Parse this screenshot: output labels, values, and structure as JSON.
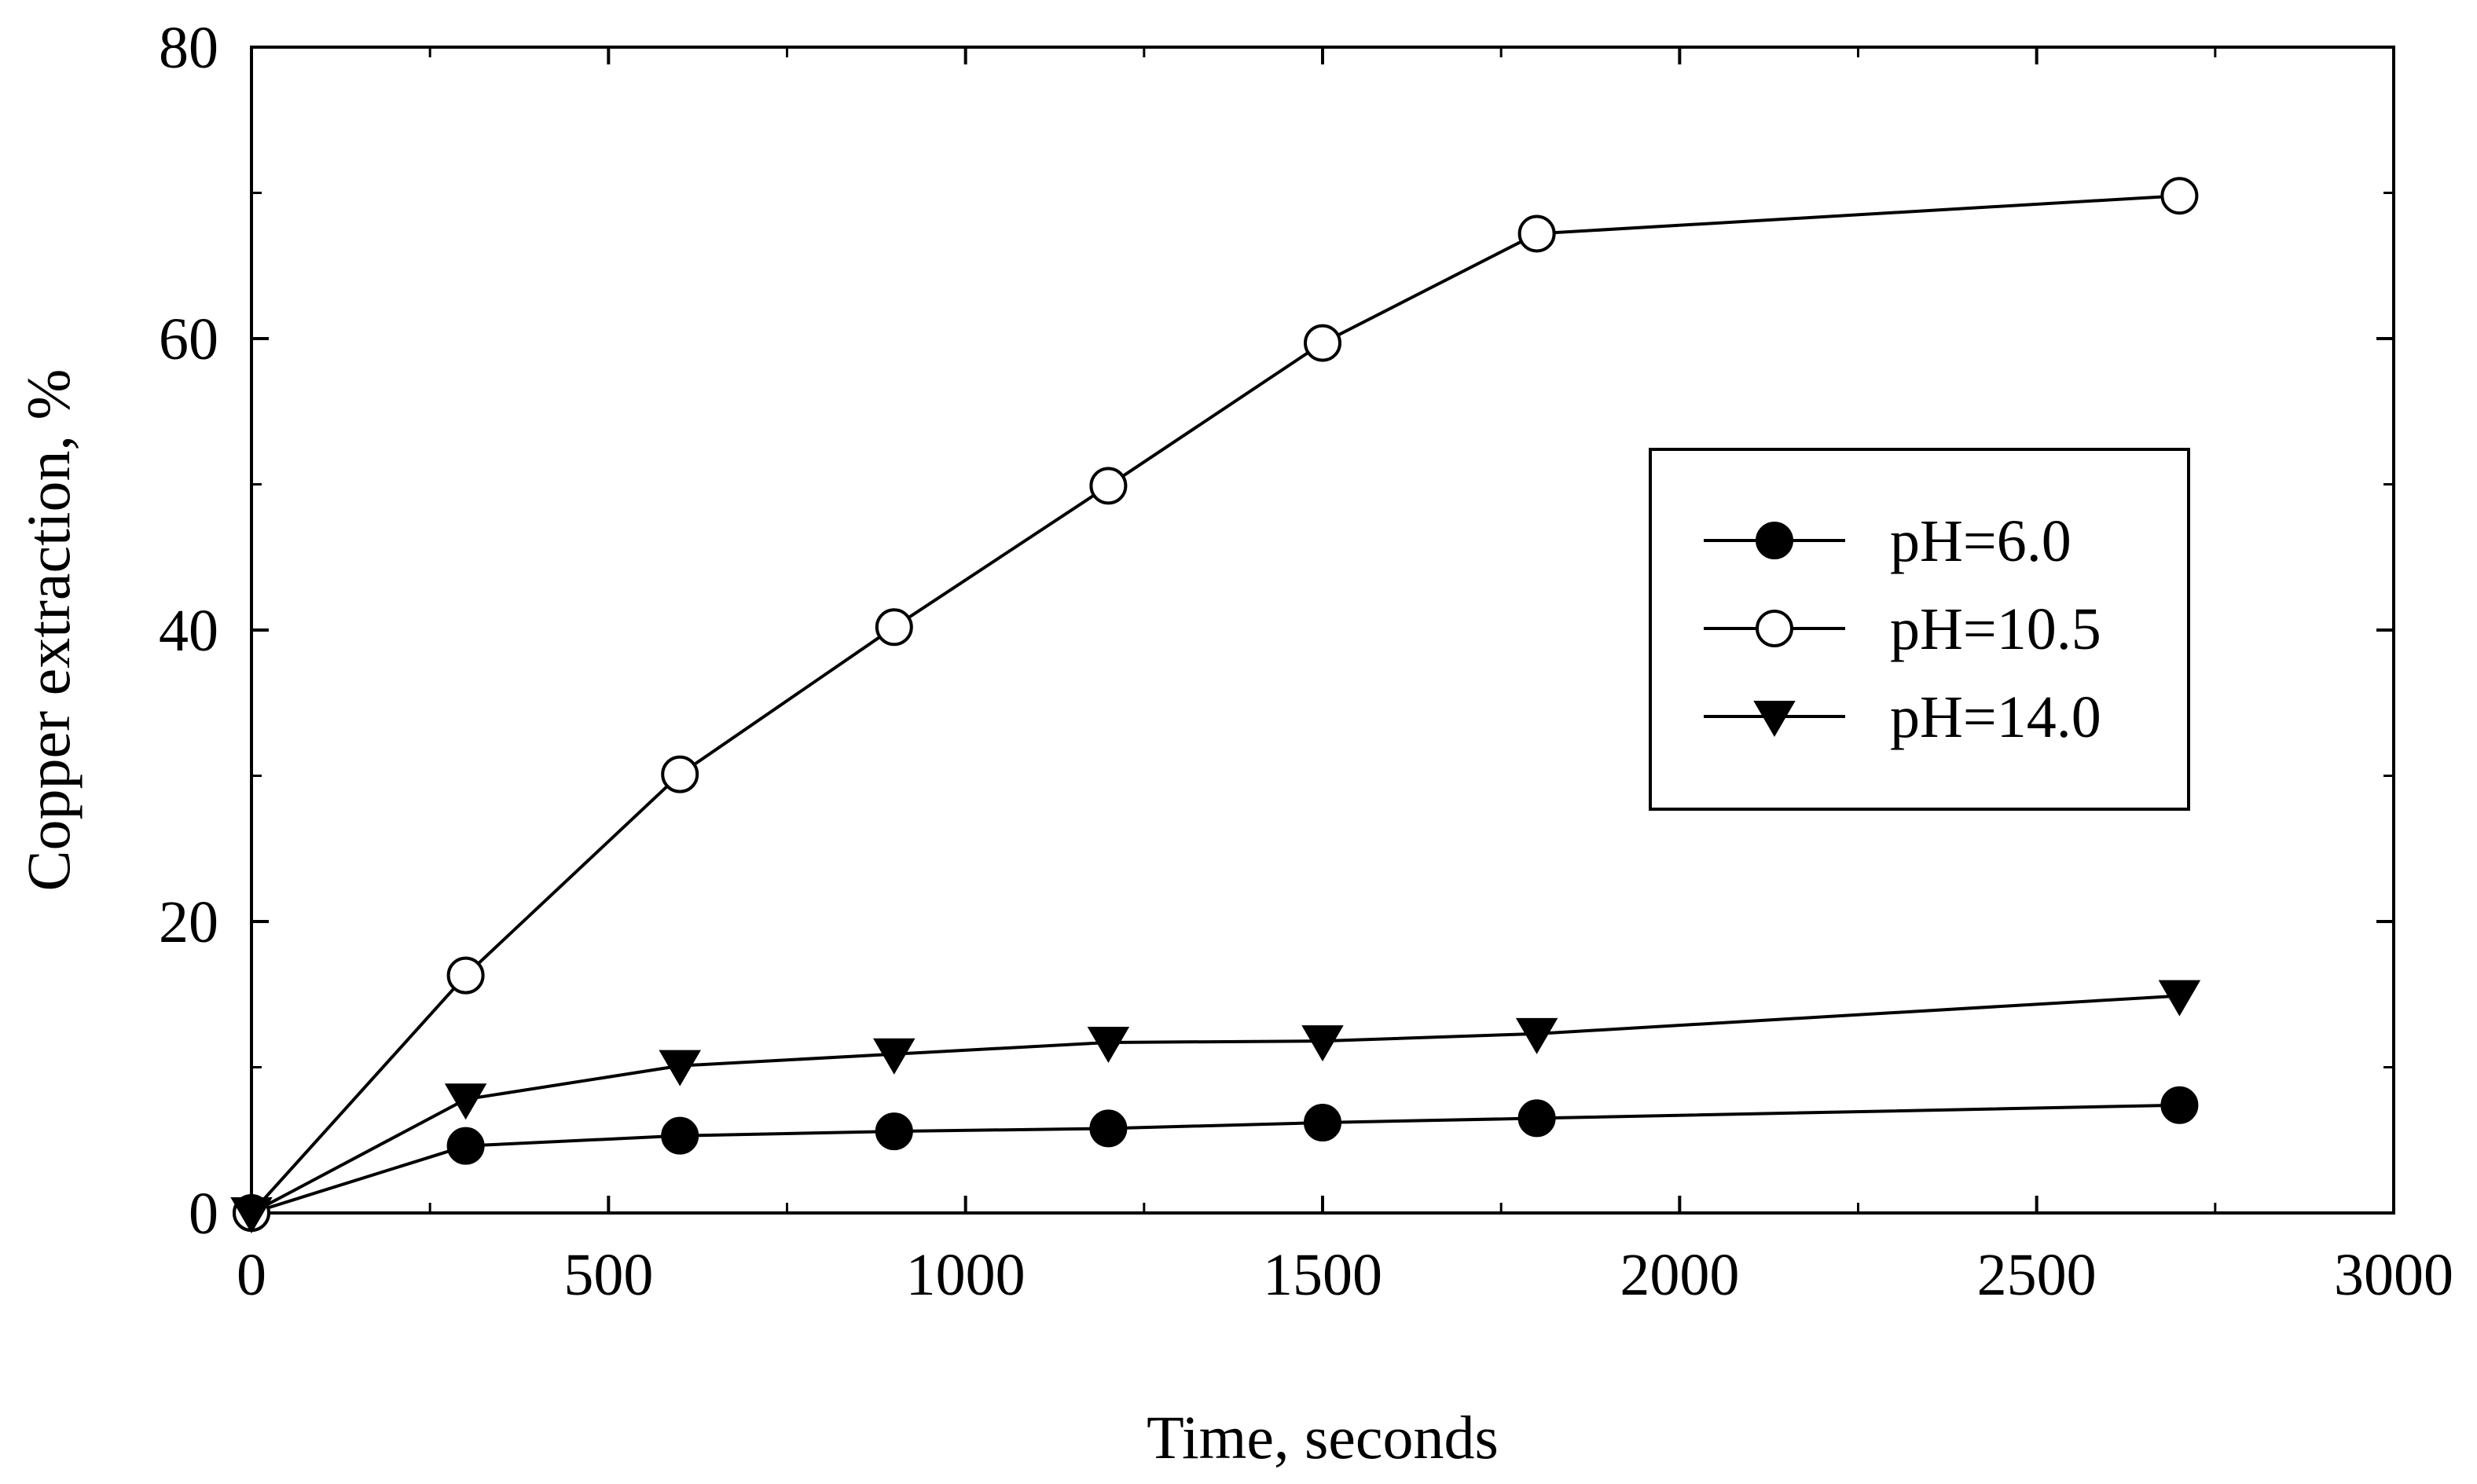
{
  "chart_data": {
    "type": "line",
    "title": "",
    "xlabel": "Time, seconds",
    "ylabel": "Copper extraction, %",
    "xlim": [
      0,
      3000
    ],
    "ylim": [
      0,
      80
    ],
    "x_ticks": [
      0,
      500,
      1000,
      1500,
      2000,
      2500,
      3000
    ],
    "y_ticks": [
      0,
      20,
      40,
      60,
      80
    ],
    "grid": false,
    "legend_position": "right-middle",
    "series": [
      {
        "name": "pH=6.0",
        "marker": "filled-circle",
        "x": [
          0,
          300,
          600,
          900,
          1200,
          1500,
          1800,
          2700
        ],
        "values": [
          0,
          4.6,
          5.3,
          5.6,
          5.8,
          6.2,
          6.5,
          7.4
        ]
      },
      {
        "name": "pH=10.5",
        "marker": "open-circle",
        "x": [
          0,
          300,
          600,
          900,
          1200,
          1500,
          1800,
          2700
        ],
        "values": [
          0,
          16.3,
          30.1,
          40.2,
          49.9,
          59.7,
          67.2,
          69.8
        ]
      },
      {
        "name": "pH=14.0",
        "marker": "filled-triangle-down",
        "x": [
          0,
          300,
          600,
          900,
          1200,
          1500,
          1800,
          2700
        ],
        "values": [
          0,
          7.8,
          10.1,
          10.9,
          11.7,
          11.8,
          12.3,
          14.9
        ]
      }
    ]
  },
  "colors": {
    "line": "#000000",
    "background": "#ffffff"
  }
}
